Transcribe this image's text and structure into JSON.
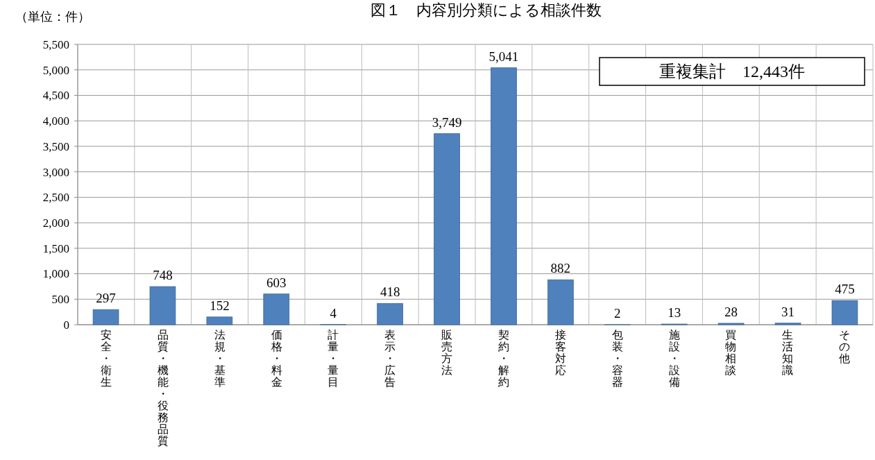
{
  "chart_data": {
    "type": "bar",
    "title": "図１　内容別分類による相談件数",
    "annotations": [
      "（単位：件）",
      "重複集計　12,443件"
    ],
    "categories": [
      "安全・衛生",
      "品質・機能・役務品質",
      "法規・基準",
      "価格・料金",
      "計量・量目",
      "表示・広告",
      "販売方法",
      "契約・解約",
      "接客対応",
      "包装・容器",
      "施設・設備",
      "買物相談",
      "生活知識",
      "その他"
    ],
    "values": [
      297,
      748,
      152,
      603,
      4,
      418,
      3749,
      5041,
      882,
      2,
      13,
      28,
      31,
      475
    ],
    "color": "#4f81bd",
    "ylim": [
      0,
      5500
    ],
    "yticks": [
      0,
      500,
      {
        "value": 1000,
        "label": "1,000"
      },
      {
        "value": 1500,
        "label": "1,500"
      },
      {
        "value": 2000,
        "label": "2,000"
      },
      {
        "value": 2500,
        "label": "2,500"
      },
      {
        "value": 3000,
        "label": "3,000"
      },
      {
        "value": 3500,
        "label": "3,500"
      },
      {
        "value": 4000,
        "label": "4,000"
      },
      {
        "value": 4500,
        "label": "4,500"
      },
      {
        "value": 5000,
        "label": "5,000"
      },
      {
        "value": 5500,
        "label": "5,500"
      }
    ],
    "value_labels": [
      "297",
      "748",
      "152",
      "603",
      "4",
      "418",
      "3,749",
      "5,041",
      "882",
      "2",
      "13",
      "28",
      "31",
      "475"
    ],
    "grid": true
  }
}
